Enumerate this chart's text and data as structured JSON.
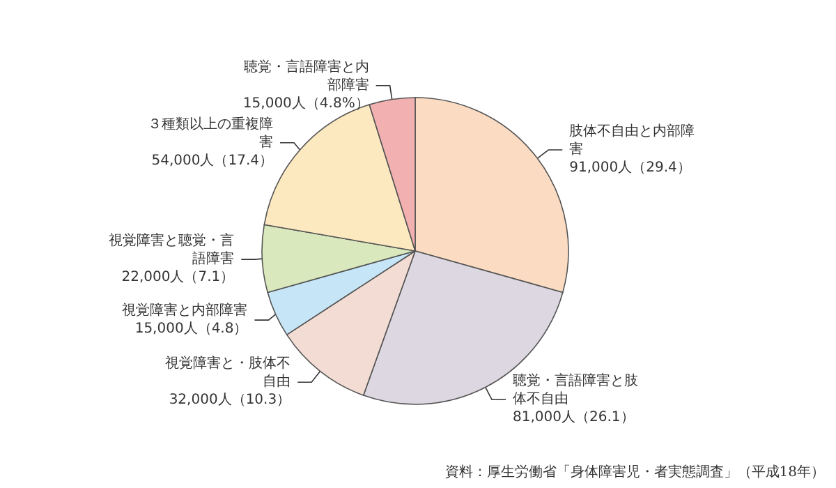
{
  "chart_data": {
    "type": "pie",
    "categories": [
      "肢体不自由と内部障害",
      "聴覚・言語障害と肢体不自由",
      "視覚障害と・肢体不自由",
      "視覚障害と内部障害",
      "視覚障害と聴覚・言語障害",
      "３種類以上の重複障害",
      "聴覚・言語障害と内部障害"
    ],
    "values": [
      91000,
      81000,
      32000,
      15000,
      22000,
      54000,
      15000
    ],
    "value_labels": [
      "91,000人（29.4）",
      "81,000人（26.1）",
      "32,000人（10.3）",
      "15,000人（4.8）",
      "22,000人（7.1）",
      "54,000人（17.4）",
      "15,000人（4.8%）"
    ],
    "colors": [
      "#fbdcc3",
      "#dcd7e1",
      "#f2dcd3",
      "#c6e6f7",
      "#d9e8bd",
      "#fde9c0",
      "#f2b0b0"
    ],
    "annotations": [
      "資料：厚生労働省「身体障害児・者実態調査」（平成18年）"
    ]
  }
}
